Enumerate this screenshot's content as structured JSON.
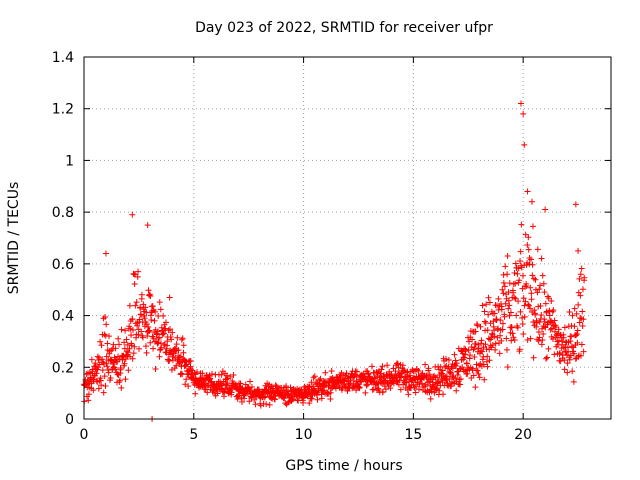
{
  "chart_data": {
    "type": "scatter",
    "title": "Day 023 of 2022, SRMTID for receiver ufpr",
    "xlabel": "GPS time / hours",
    "ylabel": "SRMTID / TECUs",
    "xlim": [
      0,
      24
    ],
    "ylim": [
      0,
      1.4
    ],
    "x_ticks": [
      0,
      5,
      10,
      15,
      20
    ],
    "x_tick_labels": [
      "0",
      "5",
      "10",
      "15",
      "20"
    ],
    "y_ticks": [
      0,
      0.2,
      0.4,
      0.6,
      0.8,
      1,
      1.2,
      1.4
    ],
    "y_tick_labels": [
      "0",
      "0.2",
      "0.4",
      "0.6",
      "0.8",
      "1",
      "1.2",
      "1.4"
    ],
    "grid": true,
    "marker": "+",
    "color": "#ff0000",
    "series": [
      {
        "name": "SRMTID",
        "profile_x": [
          0,
          0.3,
          0.6,
          1.0,
          1.3,
          1.6,
          2.0,
          2.3,
          2.6,
          3.0,
          3.3,
          3.6,
          4.0,
          4.3,
          4.6,
          5.0,
          5.5,
          6.0,
          6.5,
          7.0,
          7.5,
          8.0,
          8.5,
          9.0,
          9.5,
          10.0,
          10.5,
          11.0,
          11.5,
          12.0,
          12.5,
          13.0,
          13.5,
          14.0,
          14.5,
          15.0,
          15.5,
          16.0,
          16.5,
          17.0,
          17.5,
          18.0,
          18.5,
          19.0,
          19.5,
          20.0,
          20.3,
          20.6,
          21.0,
          21.3,
          21.6,
          22.0,
          22.3,
          22.6,
          22.8
        ],
        "profile_mean": [
          0.1,
          0.16,
          0.2,
          0.26,
          0.22,
          0.2,
          0.28,
          0.42,
          0.4,
          0.36,
          0.34,
          0.3,
          0.27,
          0.24,
          0.22,
          0.16,
          0.14,
          0.13,
          0.13,
          0.12,
          0.1,
          0.09,
          0.1,
          0.1,
          0.09,
          0.1,
          0.12,
          0.13,
          0.14,
          0.15,
          0.15,
          0.15,
          0.15,
          0.16,
          0.16,
          0.15,
          0.15,
          0.15,
          0.17,
          0.2,
          0.24,
          0.28,
          0.33,
          0.38,
          0.42,
          0.48,
          0.55,
          0.45,
          0.38,
          0.34,
          0.3,
          0.26,
          0.3,
          0.4,
          0.42
        ],
        "profile_spread": [
          0.05,
          0.06,
          0.07,
          0.12,
          0.08,
          0.08,
          0.12,
          0.16,
          0.16,
          0.16,
          0.12,
          0.1,
          0.09,
          0.07,
          0.06,
          0.05,
          0.04,
          0.04,
          0.04,
          0.04,
          0.03,
          0.03,
          0.03,
          0.03,
          0.03,
          0.03,
          0.04,
          0.04,
          0.04,
          0.04,
          0.04,
          0.04,
          0.04,
          0.04,
          0.05,
          0.05,
          0.05,
          0.05,
          0.06,
          0.08,
          0.1,
          0.12,
          0.14,
          0.16,
          0.18,
          0.2,
          0.22,
          0.18,
          0.14,
          0.12,
          0.1,
          0.1,
          0.12,
          0.16,
          0.16
        ],
        "sample_step_hours": 0.015,
        "peaks": [
          {
            "x": 1.0,
            "y": 0.64
          },
          {
            "x": 2.2,
            "y": 0.79
          },
          {
            "x": 2.9,
            "y": 0.75
          },
          {
            "x": 3.1,
            "y": 0.0
          },
          {
            "x": 3.9,
            "y": 0.47
          },
          {
            "x": 19.9,
            "y": 1.22
          },
          {
            "x": 20.0,
            "y": 1.18
          },
          {
            "x": 20.05,
            "y": 1.06
          },
          {
            "x": 20.2,
            "y": 0.88
          },
          {
            "x": 20.4,
            "y": 0.84
          },
          {
            "x": 21.0,
            "y": 0.81
          },
          {
            "x": 22.4,
            "y": 0.83
          },
          {
            "x": 22.5,
            "y": 0.65
          }
        ]
      }
    ]
  }
}
